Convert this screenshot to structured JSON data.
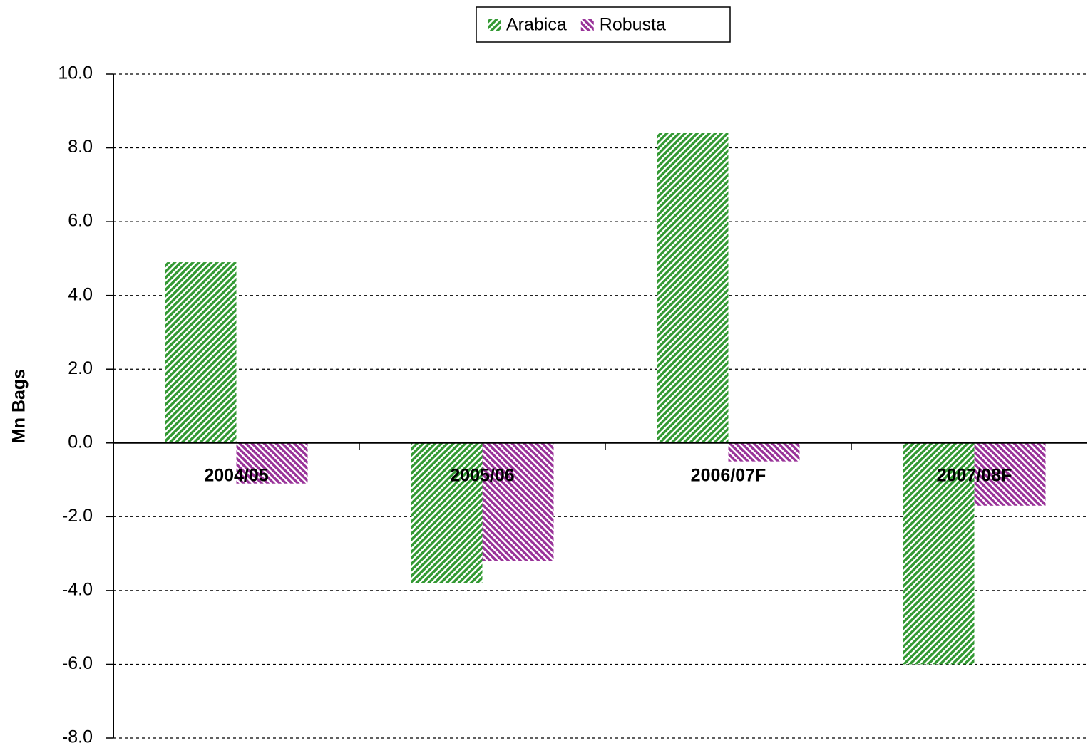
{
  "chart_data": {
    "type": "bar",
    "categories": [
      "2004/05",
      "2005/06",
      "2006/07F",
      "2007/08F"
    ],
    "series": [
      {
        "name": "Arabica",
        "color": "#339933",
        "values": [
          4.9,
          -3.8,
          8.4,
          -6.0
        ]
      },
      {
        "name": "Robusta",
        "color": "#993399",
        "values": [
          -1.1,
          -3.2,
          -0.5,
          -1.7
        ]
      }
    ],
    "ylabel": "Mn Bags",
    "ylim": [
      -8,
      10
    ],
    "yticks": [
      {
        "value": 10,
        "label": "10.0"
      },
      {
        "value": 8,
        "label": "8.0"
      },
      {
        "value": 6,
        "label": "6.0"
      },
      {
        "value": 4,
        "label": "4.0"
      },
      {
        "value": 2,
        "label": "2.0"
      },
      {
        "value": 0,
        "label": "0.0"
      },
      {
        "value": -2,
        "label": "-2.0"
      },
      {
        "value": -4,
        "label": "-4.0"
      },
      {
        "value": -6,
        "label": "-6.0"
      },
      {
        "value": -8,
        "label": "-8.0"
      }
    ],
    "grid": true,
    "legend": "top"
  }
}
